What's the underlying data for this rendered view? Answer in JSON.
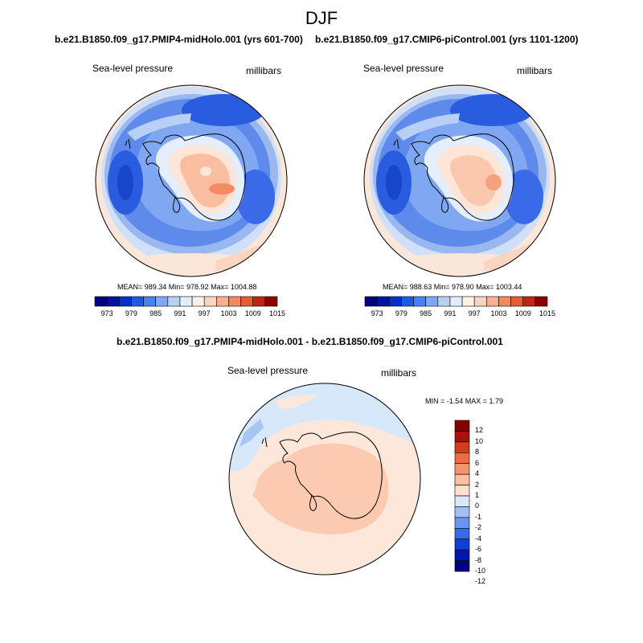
{
  "season": "DJF",
  "top_left": {
    "title": "b.e21.B1850.f09_g17.PMIP4-midHolo.001 (yrs 601-700)",
    "variable": "Sea-level pressure",
    "units": "millibars",
    "stats": "MEAN= 989.34  Min= 978.92  Max= 1004.88"
  },
  "top_right": {
    "title": "b.e21.B1850.f09_g17.CMIP6-piControl.001 (yrs 1101-1200)",
    "variable": "Sea-level pressure",
    "units": "millibars",
    "stats": "MEAN= 988.63  Min= 978.90  Max= 1003.44"
  },
  "difference": {
    "title": "b.e21.B1850.f09_g17.PMIP4-midHolo.001 - b.e21.B1850.f09_g17.CMIP6-piControl.001",
    "variable": "Sea-level pressure",
    "units": "millibars",
    "stats": "MIN =  -1.54 MAX =   1.79"
  },
  "colors": {
    "field_levels": [
      "#000080",
      "#0012a6",
      "#0030d0",
      "#1e5ae6",
      "#4a80ee",
      "#80a8f2",
      "#b8d0f6",
      "#e2eefc",
      "#fff0e6",
      "#fdd4c0",
      "#f8b090",
      "#f48860",
      "#e85a34",
      "#c42414",
      "#8c0000"
    ],
    "diff_levels": [
      "#000080",
      "#0018b0",
      "#1040d8",
      "#3a6ae8",
      "#6a94f0",
      "#a0c0f4",
      "#d6e8fa",
      "#fde0cc",
      "#f8c0a0",
      "#f49470",
      "#ee6a44",
      "#d43a1c",
      "#a8100a",
      "#840000"
    ]
  },
  "field_ticks": [
    "973",
    "979",
    "985",
    "991",
    "997",
    "1003",
    "1009",
    "1015"
  ],
  "diff_ticks": [
    "12",
    "10",
    "8",
    "6",
    "4",
    "2",
    "1",
    "0",
    "-1",
    "-2",
    "-4",
    "-6",
    "-8",
    "-10",
    "-12"
  ]
}
